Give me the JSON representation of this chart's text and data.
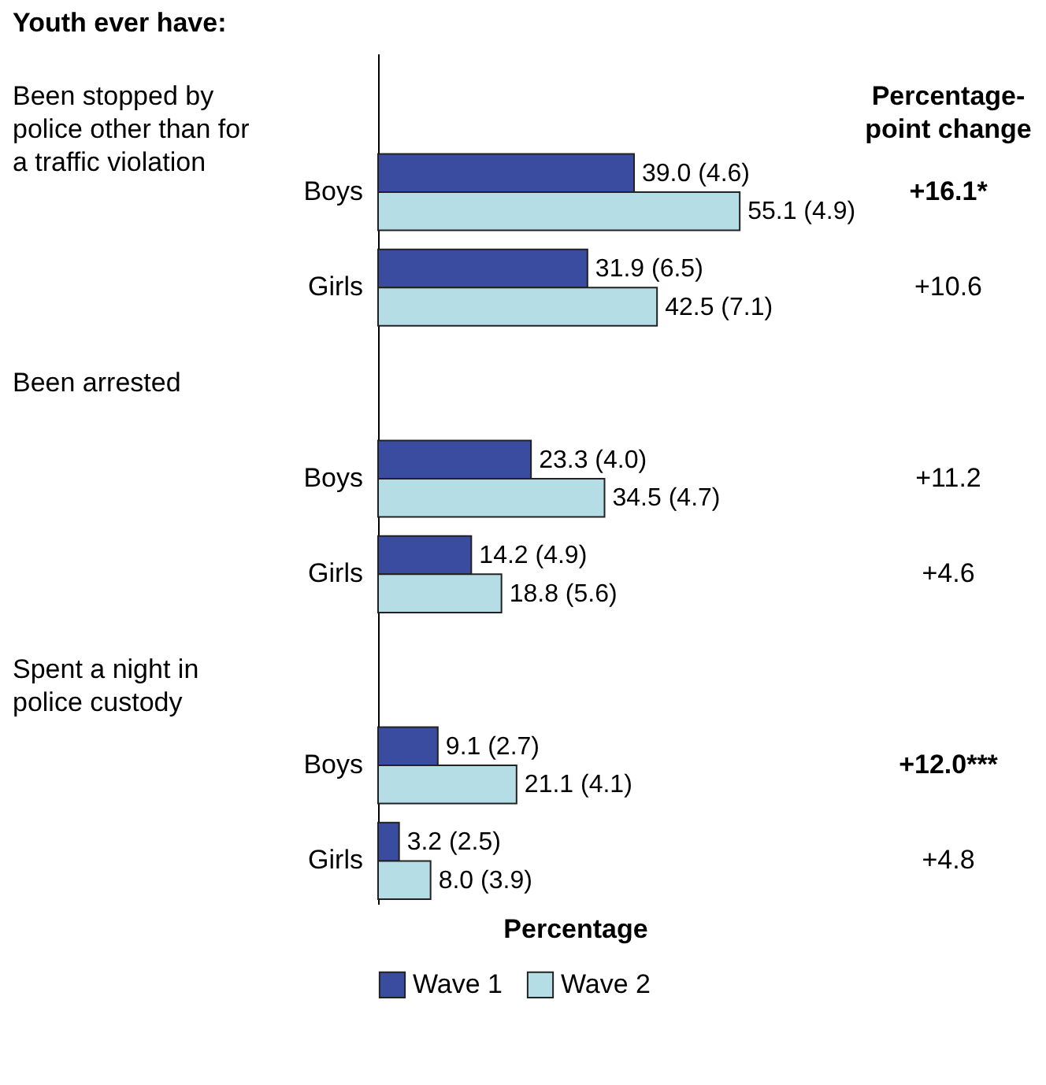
{
  "chart_data": {
    "type": "bar",
    "orientation": "horizontal",
    "title": "Youth ever have:",
    "xlabel": "Percentage",
    "categories": [
      "Boys",
      "Girls",
      "Boys",
      "Girls",
      "Boys",
      "Girls"
    ],
    "series": [
      {
        "name": "Wave 1",
        "color": "#3a4ca0",
        "values": [
          39.0,
          31.9,
          23.3,
          14.2,
          9.1,
          3.2
        ],
        "value_labels": [
          "39.0 (4.6)",
          "31.9 (6.5)",
          "23.3 (4.0)",
          "14.2 (4.9)",
          "9.1 (2.7)",
          "3.2 (2.5)"
        ]
      },
      {
        "name": "Wave 2",
        "color": "#b5dde6",
        "values": [
          55.1,
          42.5,
          34.5,
          18.8,
          21.1,
          8.0
        ],
        "value_labels": [
          "55.1 (4.9)",
          "42.5 (7.1)",
          "34.5 (4.7)",
          "18.8 (5.6)",
          "21.1 (4.1)",
          "8.0 (3.9)"
        ]
      }
    ],
    "tick_labels": "y",
    "legend": "bottom",
    "annotations": [
      "Been stopped by police other than for a traffic violation",
      "Been arrested",
      "Spent a night in police custody",
      "Percentage-point change",
      "+16.1*",
      "+10.6",
      "+11.2",
      "+4.6",
      "+12.0***",
      "+4.8"
    ]
  }
}
